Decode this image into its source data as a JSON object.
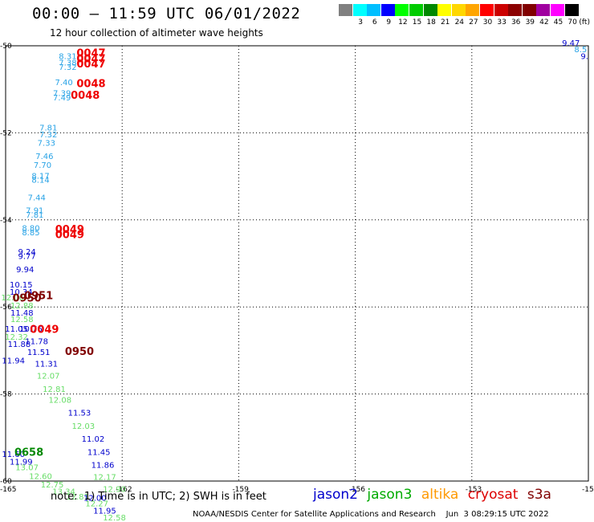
{
  "header": {
    "title": "00:00 — 11:59 UTC 06/01/2022",
    "subtitle": "12 hour collection of altimeter wave heights"
  },
  "scale": {
    "unit": "(ft)",
    "items": [
      {
        "label": "",
        "color": "#808080"
      },
      {
        "label": "3",
        "color": "#00ffff"
      },
      {
        "label": "6",
        "color": "#00bfff"
      },
      {
        "label": "9",
        "color": "#0000ff"
      },
      {
        "label": "12",
        "color": "#00ff00"
      },
      {
        "label": "15",
        "color": "#00cc00"
      },
      {
        "label": "18",
        "color": "#008800"
      },
      {
        "label": "21",
        "color": "#ffff00"
      },
      {
        "label": "24",
        "color": "#ffd700"
      },
      {
        "label": "27",
        "color": "#ffa500"
      },
      {
        "label": "30",
        "color": "#ff0000"
      },
      {
        "label": "33",
        "color": "#cc0000"
      },
      {
        "label": "36",
        "color": "#8b0000"
      },
      {
        "label": "39",
        "color": "#800000"
      },
      {
        "label": "42",
        "color": "#a000a0"
      },
      {
        "label": "45",
        "color": "#ff00ff"
      },
      {
        "label": "70",
        "color": "#000000"
      }
    ]
  },
  "note": "note:  1) Time is in UTC; 2) SWH is in feet",
  "legend": [
    {
      "name": "jason2",
      "color": "#0000cc"
    },
    {
      "name": "jason3",
      "color": "#00aa00"
    },
    {
      "name": "altika",
      "color": "#ff9900"
    },
    {
      "name": "cryosat",
      "color": "#dd0000"
    },
    {
      "name": "s3a",
      "color": "#800000"
    }
  ],
  "footer": "NOAA/NESDIS Center for Satellite Applications and Research    Jun  3 08:29:15 UTC 2022",
  "chart_data": {
    "type": "scatter",
    "xlim": [
      -165,
      -150
    ],
    "ylim": [
      -60,
      -50
    ],
    "x_ticks": [
      "-165",
      "-162",
      "-159",
      "-156",
      "-153",
      "-15"
    ],
    "y_ticks": [
      "-50",
      "-52",
      "-54",
      "-56",
      "-58",
      "-60"
    ],
    "grid": true,
    "points": [
      {
        "x": -163.4,
        "y": -50.3,
        "v": "8.31",
        "c": "#29a3e6"
      },
      {
        "x": -163.4,
        "y": -50.45,
        "v": "7.38",
        "c": "#29a3e6"
      },
      {
        "x": -163.4,
        "y": -50.55,
        "v": "7.32",
        "c": "#29a3e6"
      },
      {
        "x": -163.5,
        "y": -50.9,
        "v": "7.40",
        "c": "#29a3e6"
      },
      {
        "x": -163.55,
        "y": -51.15,
        "v": "7.39",
        "c": "#29a3e6"
      },
      {
        "x": -163.55,
        "y": -51.25,
        "v": "7.49",
        "c": "#29a3e6"
      },
      {
        "x": -163.9,
        "y": -51.95,
        "v": "7.81",
        "c": "#29a3e6"
      },
      {
        "x": -163.9,
        "y": -52.1,
        "v": "7.32",
        "c": "#29a3e6"
      },
      {
        "x": -163.95,
        "y": -52.3,
        "v": "7.33",
        "c": "#29a3e6"
      },
      {
        "x": -164.0,
        "y": -52.6,
        "v": "7.46",
        "c": "#29a3e6"
      },
      {
        "x": -164.05,
        "y": -52.8,
        "v": "7.70",
        "c": "#29a3e6"
      },
      {
        "x": -164.1,
        "y": -53.05,
        "v": "8.17",
        "c": "#29a3e6"
      },
      {
        "x": -164.1,
        "y": -53.15,
        "v": "8.14",
        "c": "#29a3e6"
      },
      {
        "x": -164.2,
        "y": -53.55,
        "v": "7.44",
        "c": "#29a3e6"
      },
      {
        "x": -164.25,
        "y": -53.85,
        "v": "7.91",
        "c": "#29a3e6"
      },
      {
        "x": -164.25,
        "y": -53.95,
        "v": "7.81",
        "c": "#29a3e6"
      },
      {
        "x": -164.35,
        "y": -54.25,
        "v": "8.80",
        "c": "#29a3e6"
      },
      {
        "x": -164.35,
        "y": -54.35,
        "v": "8.85",
        "c": "#29a3e6"
      },
      {
        "x": -164.45,
        "y": -54.8,
        "v": "9.24",
        "c": "#0000cc"
      },
      {
        "x": -164.45,
        "y": -54.9,
        "v": "9.77",
        "c": "#0000cc"
      },
      {
        "x": -164.5,
        "y": -55.2,
        "v": "9.94",
        "c": "#0000cc"
      },
      {
        "x": -164.6,
        "y": -55.55,
        "v": "10.15",
        "c": "#0000cc"
      },
      {
        "x": -164.6,
        "y": -55.72,
        "v": "10.34",
        "c": "#0000cc"
      },
      {
        "x": -164.82,
        "y": -55.85,
        "v": "12.06",
        "c": "#66dd66"
      },
      {
        "x": -164.58,
        "y": -56.03,
        "v": "12.88",
        "c": "#66dd66"
      },
      {
        "x": -164.58,
        "y": -56.2,
        "v": "11.48",
        "c": "#0000cc"
      },
      {
        "x": -164.58,
        "y": -56.35,
        "v": "12.58",
        "c": "#66dd66"
      },
      {
        "x": -164.72,
        "y": -56.57,
        "v": "11.05",
        "c": "#0000cc"
      },
      {
        "x": -164.35,
        "y": -56.57,
        "v": "10.76",
        "c": "#0000cc"
      },
      {
        "x": -164.72,
        "y": -56.75,
        "v": "12.32",
        "c": "#66dd66"
      },
      {
        "x": -164.2,
        "y": -56.85,
        "v": "11.78",
        "c": "#0000cc"
      },
      {
        "x": -164.65,
        "y": -56.92,
        "v": "11.88",
        "c": "#0000cc"
      },
      {
        "x": -164.15,
        "y": -57.1,
        "v": "11.51",
        "c": "#0000cc"
      },
      {
        "x": -164.8,
        "y": -57.3,
        "v": "11.94",
        "c": "#0000cc"
      },
      {
        "x": -163.95,
        "y": -57.37,
        "v": "11.31",
        "c": "#0000cc"
      },
      {
        "x": -163.9,
        "y": -57.65,
        "v": "12.07",
        "c": "#66dd66"
      },
      {
        "x": -163.75,
        "y": -57.95,
        "v": "12.81",
        "c": "#66dd66"
      },
      {
        "x": -163.6,
        "y": -58.2,
        "v": "12.08",
        "c": "#66dd66"
      },
      {
        "x": -163.1,
        "y": -58.5,
        "v": "11.53",
        "c": "#0000cc"
      },
      {
        "x": -163.0,
        "y": -58.8,
        "v": "12.03",
        "c": "#66dd66"
      },
      {
        "x": -162.75,
        "y": -59.1,
        "v": "11.02",
        "c": "#0000cc"
      },
      {
        "x": -162.6,
        "y": -59.4,
        "v": "11.45",
        "c": "#0000cc"
      },
      {
        "x": -164.8,
        "y": -59.45,
        "v": "11.60",
        "c": "#0000cc"
      },
      {
        "x": -164.6,
        "y": -59.62,
        "v": "11.99",
        "c": "#0000cc"
      },
      {
        "x": -164.45,
        "y": -59.75,
        "v": "13.07",
        "c": "#66dd66"
      },
      {
        "x": -162.5,
        "y": -59.7,
        "v": "11.86",
        "c": "#0000cc"
      },
      {
        "x": -164.1,
        "y": -59.95,
        "v": "12.60",
        "c": "#66dd66"
      },
      {
        "x": -162.45,
        "y": -59.97,
        "v": "12.17",
        "c": "#66dd66"
      },
      {
        "x": -163.8,
        "y": -60.15,
        "v": "12.75",
        "c": "#66dd66"
      },
      {
        "x": -163.5,
        "y": -60.3,
        "v": "13.34",
        "c": "#66dd66"
      },
      {
        "x": -162.2,
        "y": -60.25,
        "v": "12.90",
        "c": "#66dd66"
      },
      {
        "x": -163.15,
        "y": -60.42,
        "v": "12.81",
        "c": "#66dd66"
      },
      {
        "x": -162.7,
        "y": -60.45,
        "v": "12.00",
        "c": "#0000cc"
      },
      {
        "x": -162.65,
        "y": -60.58,
        "v": "12.27",
        "c": "#66dd66"
      },
      {
        "x": -162.45,
        "y": -60.75,
        "v": "11.95",
        "c": "#0000cc"
      },
      {
        "x": -162.2,
        "y": -60.9,
        "v": "12.58",
        "c": "#66dd66"
      },
      {
        "x": -150.45,
        "y": -50.0,
        "v": "9.47",
        "c": "#0000cc"
      },
      {
        "x": -150.2,
        "y": -50.15,
        "v": "8.5",
        "c": "#29a3e6"
      },
      {
        "x": -150.1,
        "y": -50.3,
        "v": "9.",
        "c": "#0000cc"
      }
    ],
    "time_labels": [
      {
        "x": -162.8,
        "y": -50.25,
        "v": "0047",
        "c": "#ee0000"
      },
      {
        "x": -162.8,
        "y": -50.38,
        "v": "0047",
        "c": "#ee0000"
      },
      {
        "x": -162.8,
        "y": -50.5,
        "v": "0047",
        "c": "#ee0000"
      },
      {
        "x": -162.8,
        "y": -50.95,
        "v": "0048",
        "c": "#ee0000"
      },
      {
        "x": -162.95,
        "y": -51.22,
        "v": "0048",
        "c": "#ee0000"
      },
      {
        "x": -163.35,
        "y": -54.3,
        "v": "0049",
        "c": "#ee0000"
      },
      {
        "x": -163.35,
        "y": -54.42,
        "v": "0049",
        "c": "#ee0000"
      },
      {
        "x": -164.15,
        "y": -55.82,
        "v": "0951",
        "c": "#800000"
      },
      {
        "x": -164.45,
        "y": -55.88,
        "v": "0950",
        "c": "#800000"
      },
      {
        "x": -164.0,
        "y": -56.6,
        "v": "0049",
        "c": "#ee0000"
      },
      {
        "x": -163.1,
        "y": -57.1,
        "v": "0950",
        "c": "#800000"
      },
      {
        "x": -164.4,
        "y": -59.42,
        "v": "0658",
        "c": "#008800"
      }
    ]
  }
}
